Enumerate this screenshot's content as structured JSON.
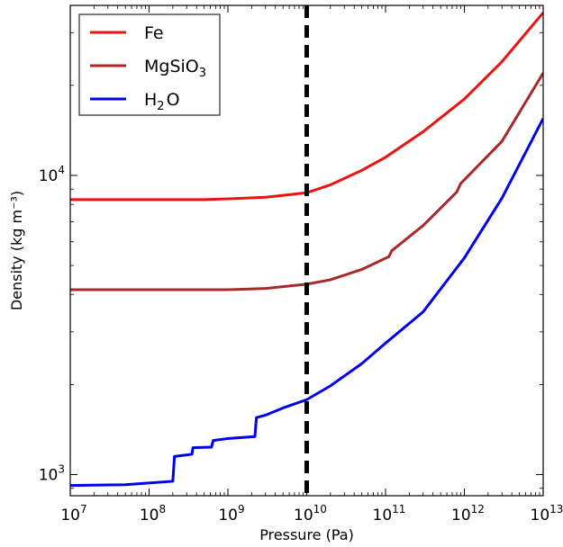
{
  "chart_data": {
    "type": "line",
    "title": "",
    "xlabel": "Pressure (Pa)",
    "ylabel": "Density (kg m⁻³)",
    "x_scale": "log",
    "y_scale": "log",
    "xlim": [
      10000000,
      10000000000000
    ],
    "ylim": [
      850,
      37000
    ],
    "x_ticks": [
      {
        "value": 10000000,
        "mant": "10",
        "exp": "7"
      },
      {
        "value": 100000000,
        "mant": "10",
        "exp": "8"
      },
      {
        "value": 1000000000,
        "mant": "10",
        "exp": "9"
      },
      {
        "value": 10000000000,
        "mant": "10",
        "exp": "10"
      },
      {
        "value": 100000000000,
        "mant": "10",
        "exp": "11"
      },
      {
        "value": 1000000000000,
        "mant": "10",
        "exp": "12"
      },
      {
        "value": 10000000000000,
        "mant": "10",
        "exp": "13"
      }
    ],
    "y_ticks": [
      {
        "value": 1000,
        "mant": "10",
        "exp": "3"
      },
      {
        "value": 10000,
        "mant": "10",
        "exp": "4"
      }
    ],
    "legend_position": "top-left",
    "vline": {
      "x": 10000000000,
      "style": "dashed",
      "color": "#000000"
    },
    "series": [
      {
        "name": "Fe",
        "color": "#ee1111",
        "points": [
          [
            10000000,
            8300
          ],
          [
            100000000,
            8300
          ],
          [
            500000000,
            8300
          ],
          [
            1000000000,
            8350
          ],
          [
            3000000000,
            8450
          ],
          [
            10000000000,
            8750
          ],
          [
            20000000000,
            9300
          ],
          [
            50000000000,
            10400
          ],
          [
            100000000000,
            11500
          ],
          [
            300000000000,
            14000
          ],
          [
            1000000000000,
            18000
          ],
          [
            3000000000000,
            24000
          ],
          [
            10000000000000,
            35000
          ]
        ]
      },
      {
        "name": "MgSiO",
        "name_sub": "3",
        "color": "#a52a2a",
        "points": [
          [
            10000000,
            4150
          ],
          [
            100000000,
            4150
          ],
          [
            1000000000,
            4150
          ],
          [
            3000000000,
            4190
          ],
          [
            10000000000,
            4330
          ],
          [
            20000000000,
            4480
          ],
          [
            50000000000,
            4850
          ],
          [
            110000000000,
            5350
          ],
          [
            120000000000,
            5600
          ],
          [
            300000000000,
            6800
          ],
          [
            800000000000,
            8800
          ],
          [
            900000000000,
            9400
          ],
          [
            3000000000000,
            13000
          ],
          [
            10000000000000,
            22000
          ]
        ]
      },
      {
        "name": "H",
        "name_sub": "2",
        "name_tail": "O",
        "color": "#0000ee",
        "points": [
          [
            10000000,
            920
          ],
          [
            50000000,
            925
          ],
          [
            200000000,
            950
          ],
          [
            210000000,
            1150
          ],
          [
            350000000,
            1170
          ],
          [
            360000000,
            1230
          ],
          [
            620000000,
            1235
          ],
          [
            650000000,
            1300
          ],
          [
            1000000000,
            1320
          ],
          [
            2200000000,
            1340
          ],
          [
            2300000000,
            1550
          ],
          [
            3000000000,
            1580
          ],
          [
            5000000000,
            1670
          ],
          [
            10000000000,
            1780
          ],
          [
            20000000000,
            1980
          ],
          [
            50000000000,
            2350
          ],
          [
            100000000000,
            2750
          ],
          [
            300000000000,
            3500
          ],
          [
            1000000000000,
            5300
          ],
          [
            3000000000000,
            8400
          ],
          [
            10000000000000,
            15500
          ]
        ]
      }
    ]
  }
}
